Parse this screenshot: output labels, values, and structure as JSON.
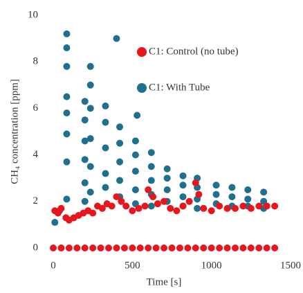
{
  "chart_data": {
    "type": "scatter",
    "xlabel": "Time [s]",
    "ylabel": "CH₄ concentration [ppm]",
    "xlim": [
      0,
      1500
    ],
    "xticks": [
      0,
      500,
      1000,
      1500
    ],
    "ylim": [
      0,
      10
    ],
    "yticks": [
      0,
      2,
      4,
      6,
      8,
      10
    ],
    "grid": false,
    "legend": "upper right",
    "series": [
      {
        "name": "C1: With Tube",
        "color": "#1f6f8e",
        "x": [
          85,
          85,
          85,
          85,
          85,
          85,
          85,
          85,
          200,
          200,
          200,
          200,
          200,
          200,
          235,
          235,
          235,
          235,
          235,
          235,
          330,
          330,
          330,
          330,
          330,
          420,
          420,
          420,
          420,
          420,
          520,
          520,
          520,
          520,
          520,
          620,
          620,
          620,
          620,
          620,
          720,
          720,
          720,
          720,
          820,
          820,
          820,
          820,
          910,
          910,
          910,
          910,
          1030,
          1030,
          1030,
          1130,
          1130,
          1130,
          1230,
          1230,
          1230,
          1330,
          1330,
          1330,
          400,
          530,
          10,
          40
        ],
        "values": [
          9.2,
          8.6,
          7.8,
          6.5,
          5.8,
          4.9,
          3.7,
          2.1,
          6.3,
          5.5,
          4.6,
          3.8,
          2.8,
          2.0,
          7.8,
          7.0,
          6.0,
          4.7,
          3.5,
          2.4,
          6.1,
          5.4,
          4.3,
          3.2,
          2.6,
          5.2,
          4.5,
          3.7,
          2.9,
          2.2,
          4.6,
          4.0,
          3.3,
          2.5,
          1.9,
          4.1,
          3.5,
          2.9,
          2.3,
          1.8,
          3.4,
          3.0,
          2.5,
          2.0,
          3.1,
          2.7,
          2.2,
          1.8,
          3.0,
          2.6,
          2.1,
          1.7,
          2.7,
          2.3,
          1.9,
          2.6,
          2.2,
          1.8,
          2.5,
          2.1,
          1.8,
          2.4,
          2.0,
          1.7,
          9.0,
          5.7,
          1.1,
          1.6
        ]
      },
      {
        "name": "C1: Control (no tube)",
        "color": "#e8161c",
        "x": [
          0,
          50,
          100,
          150,
          200,
          250,
          300,
          350,
          400,
          450,
          500,
          550,
          600,
          650,
          700,
          750,
          800,
          850,
          900,
          950,
          1000,
          1050,
          1100,
          1150,
          1200,
          1250,
          1300,
          1350,
          1400,
          10,
          30,
          50,
          80,
          100,
          130,
          160,
          190,
          220,
          250,
          280,
          310,
          340,
          370,
          400,
          430,
          460,
          500,
          540,
          580,
          600,
          630,
          660,
          700,
          740,
          780,
          820,
          860,
          900,
          920,
          950,
          1000,
          1050,
          1100,
          1150,
          1200,
          1250,
          1300,
          1350,
          1400
        ],
        "values": [
          0,
          0,
          0,
          0,
          0,
          0,
          0,
          0,
          0,
          0,
          0,
          0,
          0,
          0,
          0,
          0,
          0,
          0,
          0,
          0,
          0,
          0,
          0,
          0,
          0,
          0,
          0,
          0,
          0,
          1.6,
          1.5,
          1.7,
          1.3,
          1.2,
          1.3,
          1.4,
          1.5,
          1.6,
          1.5,
          1.8,
          1.7,
          1.9,
          1.8,
          2.2,
          2.0,
          1.8,
          1.6,
          1.7,
          1.8,
          2.5,
          2.2,
          1.9,
          2.0,
          1.7,
          1.6,
          1.8,
          2.0,
          2.8,
          2.3,
          1.7,
          1.6,
          1.8,
          1.7,
          1.7,
          1.8,
          1.7,
          1.8,
          1.8,
          1.8
        ]
      }
    ]
  }
}
